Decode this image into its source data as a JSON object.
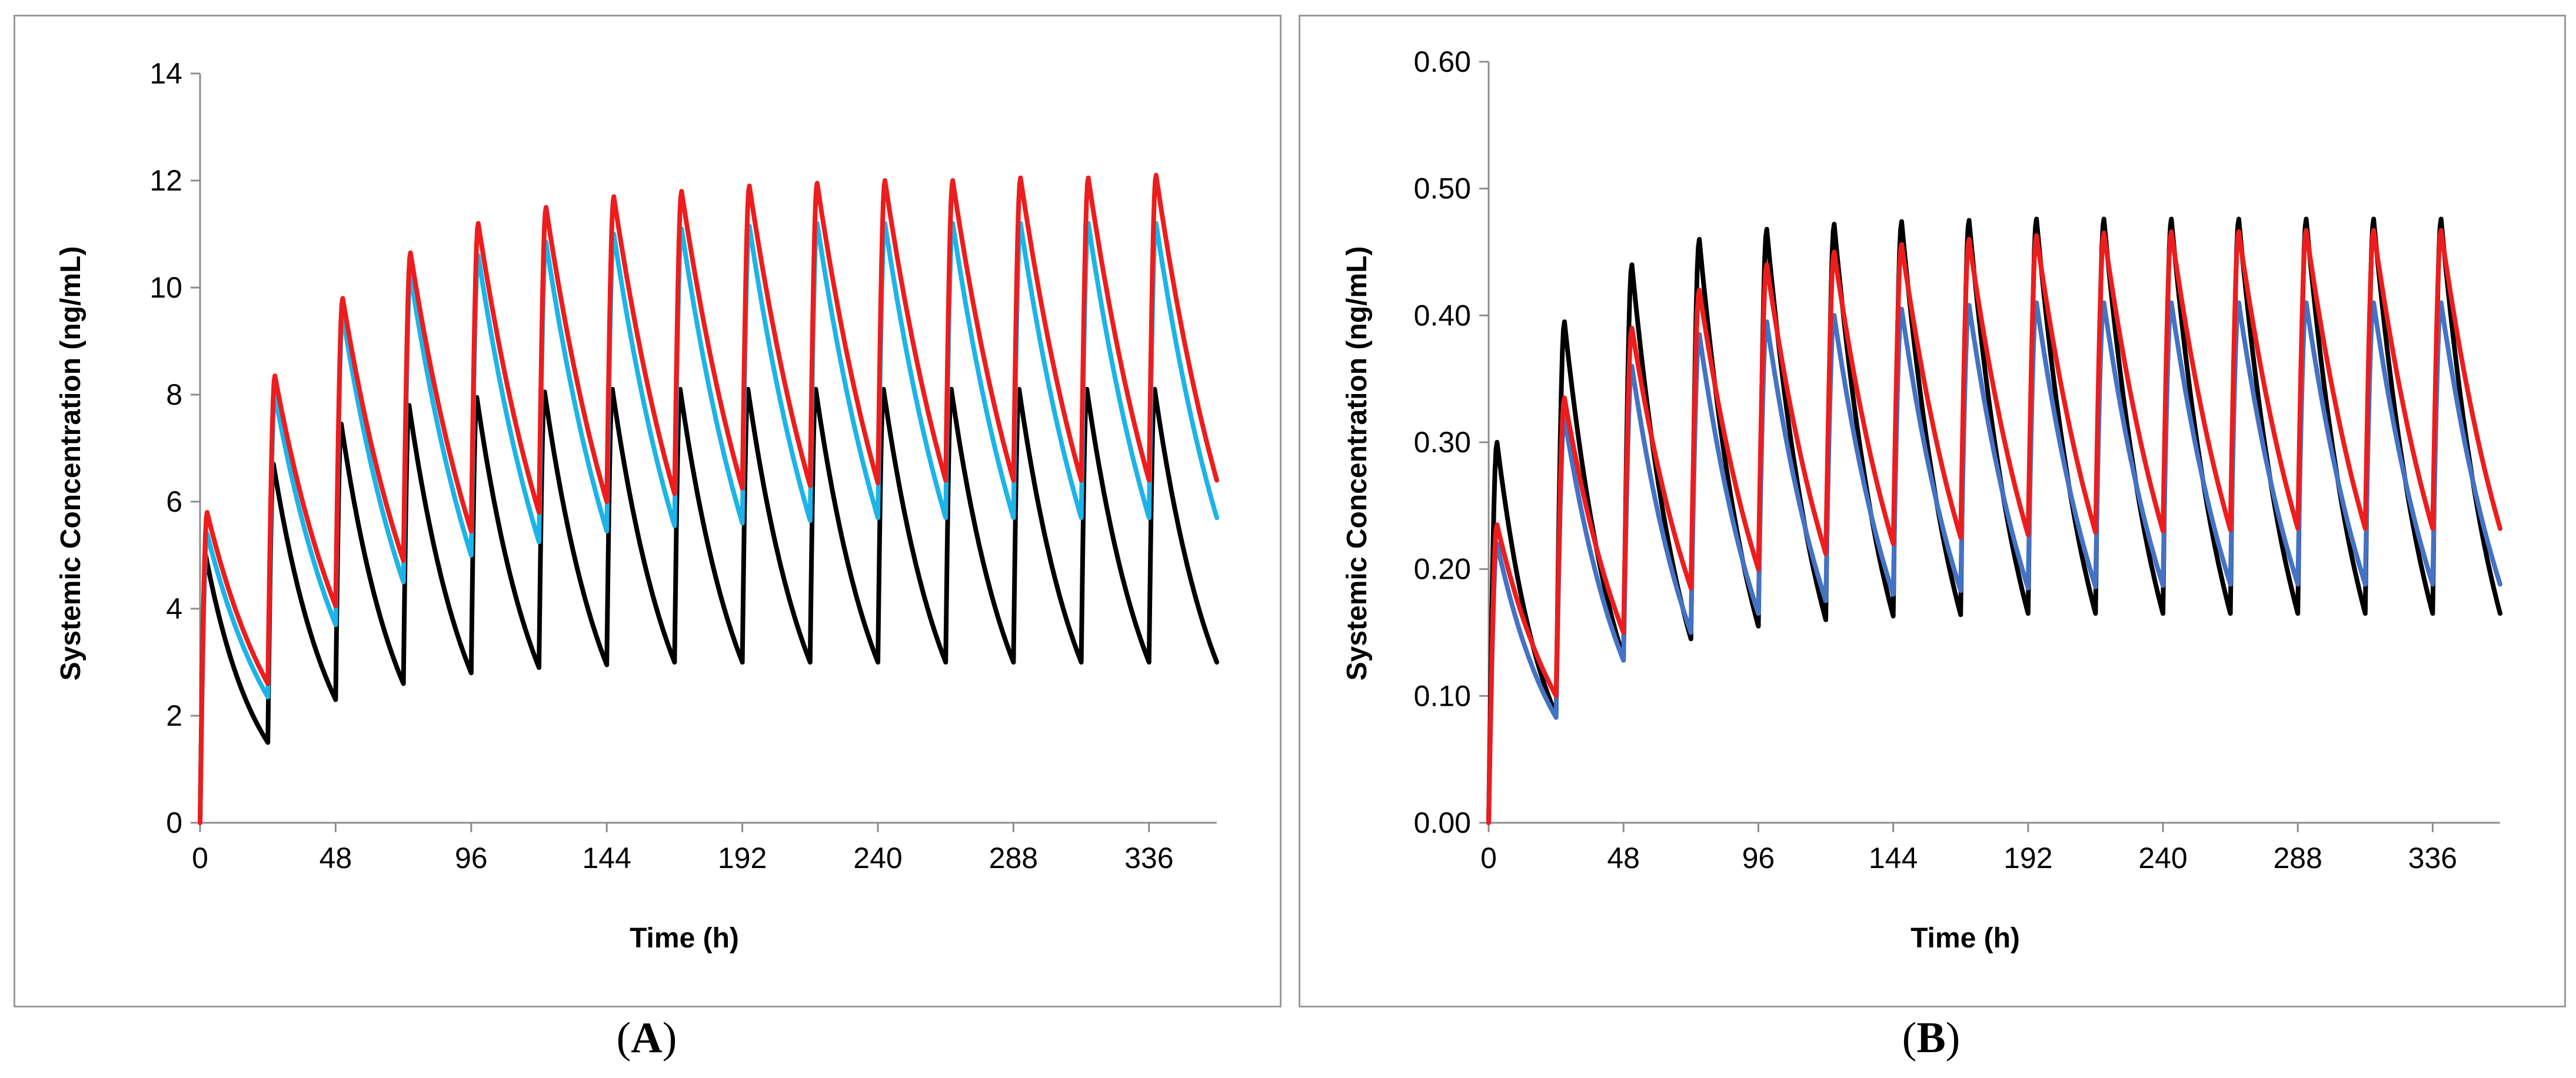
{
  "chart_data": [
    {
      "type": "line",
      "panel": "A",
      "panel_label": {
        "open": "(",
        "letter": "A",
        "close": ")"
      },
      "title": "",
      "xlabel": "Time (h)",
      "ylabel": "Systemic Concentration (ng/mL)",
      "xlim": [
        0,
        360
      ],
      "ylim": [
        0,
        14
      ],
      "xticks": [
        0,
        48,
        96,
        144,
        192,
        240,
        288,
        336
      ],
      "xtick_labels": [
        "0",
        "48",
        "96",
        "144",
        "192",
        "240",
        "288",
        "336"
      ],
      "yticks": [
        0,
        2,
        4,
        6,
        8,
        10,
        12,
        14
      ],
      "ytick_labels": [
        "0",
        "2",
        "4",
        "6",
        "8",
        "10",
        "12",
        "14"
      ],
      "grid": false,
      "dosing_interval_h": 24,
      "series": [
        {
          "name": "black",
          "color": "#000000",
          "t_peak_h": 2,
          "peak": [
            5.0,
            6.7,
            7.45,
            7.8,
            7.95,
            8.05,
            8.1,
            8.1,
            8.1,
            8.1,
            8.1,
            8.1,
            8.1,
            8.1,
            8.1
          ],
          "trough": [
            1.5,
            2.3,
            2.6,
            2.8,
            2.9,
            2.95,
            3.0,
            3.0,
            3.0,
            3.0,
            3.0,
            3.0,
            3.0,
            3.0,
            3.0
          ]
        },
        {
          "name": "light-blue",
          "color": "#1cb4e8",
          "t_peak_h": 2.5,
          "peak": [
            5.4,
            8.0,
            9.5,
            10.25,
            10.6,
            10.85,
            11.0,
            11.1,
            11.15,
            11.2,
            11.2,
            11.2,
            11.2,
            11.2,
            11.2
          ],
          "trough": [
            2.35,
            3.7,
            4.5,
            5.0,
            5.25,
            5.45,
            5.55,
            5.6,
            5.65,
            5.7,
            5.7,
            5.7,
            5.7,
            5.7,
            5.7
          ]
        },
        {
          "name": "red",
          "color": "#ee1c1c",
          "t_peak_h": 2.5,
          "peak": [
            5.8,
            8.35,
            9.8,
            10.65,
            11.2,
            11.5,
            11.7,
            11.8,
            11.9,
            11.95,
            12.0,
            12.0,
            12.05,
            12.05,
            12.1
          ],
          "trough": [
            2.6,
            4.05,
            4.9,
            5.45,
            5.8,
            6.0,
            6.15,
            6.25,
            6.3,
            6.35,
            6.4,
            6.4,
            6.4,
            6.4,
            6.4
          ]
        }
      ]
    },
    {
      "type": "line",
      "panel": "B",
      "panel_label": {
        "open": "(",
        "letter": "B",
        "close": ")"
      },
      "title": "",
      "xlabel": "Time (h)",
      "ylabel": "Systemic Concentration (ng/mL)",
      "xlim": [
        0,
        360
      ],
      "ylim": [
        0,
        0.6
      ],
      "xticks": [
        0,
        48,
        96,
        144,
        192,
        240,
        288,
        336
      ],
      "xtick_labels": [
        "0",
        "48",
        "96",
        "144",
        "192",
        "240",
        "288",
        "336"
      ],
      "yticks": [
        0,
        0.1,
        0.2,
        0.3,
        0.4,
        0.5,
        0.6
      ],
      "ytick_labels": [
        "0.00",
        "0.10",
        "0.20",
        "0.30",
        "0.40",
        "0.50",
        "0.60"
      ],
      "grid": false,
      "dosing_interval_h": 24,
      "series": [
        {
          "name": "black",
          "color": "#000000",
          "t_peak_h": 3,
          "peak": [
            0.3,
            0.395,
            0.44,
            0.46,
            0.468,
            0.472,
            0.474,
            0.475,
            0.476,
            0.476,
            0.476,
            0.476,
            0.476,
            0.476,
            0.476
          ],
          "trough": [
            0.085,
            0.13,
            0.145,
            0.155,
            0.16,
            0.163,
            0.164,
            0.165,
            0.165,
            0.165,
            0.165,
            0.165,
            0.165,
            0.165,
            0.165
          ]
        },
        {
          "name": "blue",
          "color": "#4472c4",
          "t_peak_h": 3,
          "peak": [
            0.22,
            0.32,
            0.36,
            0.385,
            0.395,
            0.4,
            0.405,
            0.408,
            0.41,
            0.41,
            0.41,
            0.41,
            0.41,
            0.41,
            0.41
          ],
          "trough": [
            0.083,
            0.128,
            0.15,
            0.165,
            0.175,
            0.18,
            0.183,
            0.185,
            0.186,
            0.187,
            0.188,
            0.188,
            0.188,
            0.188,
            0.188
          ]
        },
        {
          "name": "red",
          "color": "#ee1c1c",
          "t_peak_h": 3,
          "peak": [
            0.235,
            0.335,
            0.39,
            0.42,
            0.44,
            0.45,
            0.456,
            0.46,
            0.463,
            0.465,
            0.466,
            0.466,
            0.467,
            0.467,
            0.467
          ],
          "trough": [
            0.1,
            0.15,
            0.185,
            0.2,
            0.212,
            0.22,
            0.225,
            0.227,
            0.229,
            0.23,
            0.231,
            0.232,
            0.232,
            0.232,
            0.232
          ]
        }
      ]
    }
  ]
}
